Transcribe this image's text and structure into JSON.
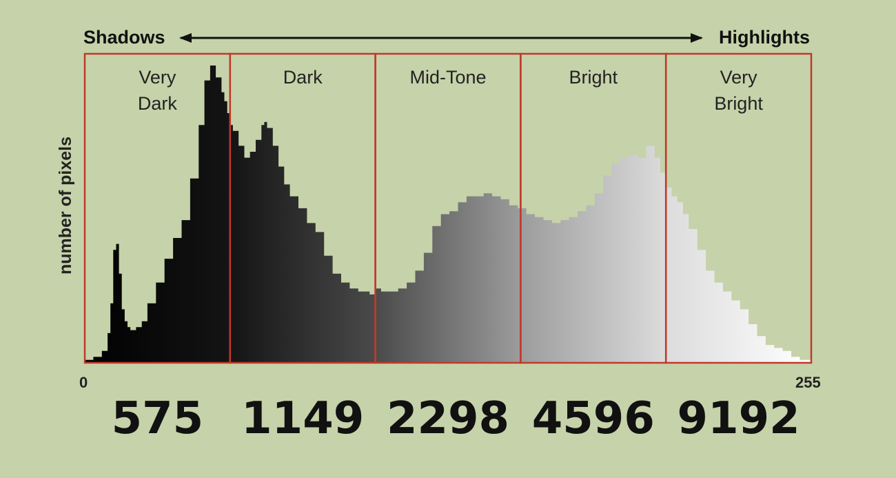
{
  "chart_data": {
    "type": "area",
    "title": "",
    "ylabel": "number of pixels",
    "arrow": {
      "left_label": "Shadows",
      "right_label": "Highlights"
    },
    "xlim": [
      0,
      255
    ],
    "x_tick_labels": [
      "0",
      "255"
    ],
    "ylim": [
      0,
      100
    ],
    "grid": false,
    "zones": [
      {
        "label_lines": [
          "Very",
          "Dark"
        ],
        "range": [
          0,
          51
        ],
        "value": "575"
      },
      {
        "label_lines": [
          "Dark"
        ],
        "range": [
          51,
          102
        ],
        "value": "1149"
      },
      {
        "label_lines": [
          "Mid-Tone"
        ],
        "range": [
          102,
          153
        ],
        "value": "2298"
      },
      {
        "label_lines": [
          "Bright"
        ],
        "range": [
          153,
          204
        ],
        "value": "4596"
      },
      {
        "label_lines": [
          "Very",
          "Bright"
        ],
        "range": [
          204,
          255
        ],
        "value": "9192"
      }
    ],
    "series": [
      {
        "x": [
          0,
          3,
          6,
          8,
          9,
          10,
          11,
          12,
          13,
          14,
          15,
          16,
          17,
          18,
          20,
          22,
          25,
          28,
          31,
          34,
          37,
          40,
          42,
          44,
          46,
          48,
          49,
          50,
          51,
          52,
          54,
          56,
          58,
          60,
          62,
          63,
          64,
          66,
          68,
          70,
          72,
          75,
          78,
          81,
          84,
          87,
          90,
          93,
          96,
          100,
          102,
          104,
          107,
          110,
          113,
          116,
          119,
          122,
          125,
          128,
          131,
          134,
          137,
          140,
          143,
          146,
          149,
          152,
          155,
          158,
          161,
          164,
          167,
          170,
          173,
          176,
          179,
          182,
          185,
          188,
          191,
          194,
          197,
          200,
          202,
          204,
          206,
          208,
          210,
          212,
          215,
          218,
          221,
          224,
          227,
          230,
          233,
          236,
          239,
          242,
          245,
          248,
          251,
          255
        ],
        "values": [
          1,
          2,
          4,
          10,
          20,
          38,
          40,
          30,
          18,
          14,
          12,
          11,
          11,
          12,
          14,
          20,
          27,
          35,
          42,
          48,
          62,
          80,
          95,
          100,
          96,
          91,
          88,
          84,
          80,
          78,
          73,
          69,
          71,
          75,
          80,
          81,
          79,
          73,
          66,
          60,
          56,
          52,
          47,
          44,
          36,
          30,
          27,
          25,
          24,
          23,
          25,
          24,
          24,
          25,
          27,
          31,
          37,
          46,
          50,
          51,
          54,
          56,
          56,
          57,
          56,
          55,
          53,
          52,
          50,
          49,
          48,
          47,
          48,
          49,
          51,
          53,
          57,
          63,
          67,
          69,
          70,
          69,
          73,
          69,
          64,
          59,
          56,
          54,
          50,
          45,
          38,
          31,
          27,
          24,
          21,
          18,
          13,
          9,
          6,
          5,
          4,
          2,
          1,
          0
        ]
      }
    ],
    "colors": {
      "zone_border": "#c0392b",
      "background": "#c6d2a9",
      "fill_dark": "#000000",
      "fill_light": "#ffffff"
    }
  }
}
